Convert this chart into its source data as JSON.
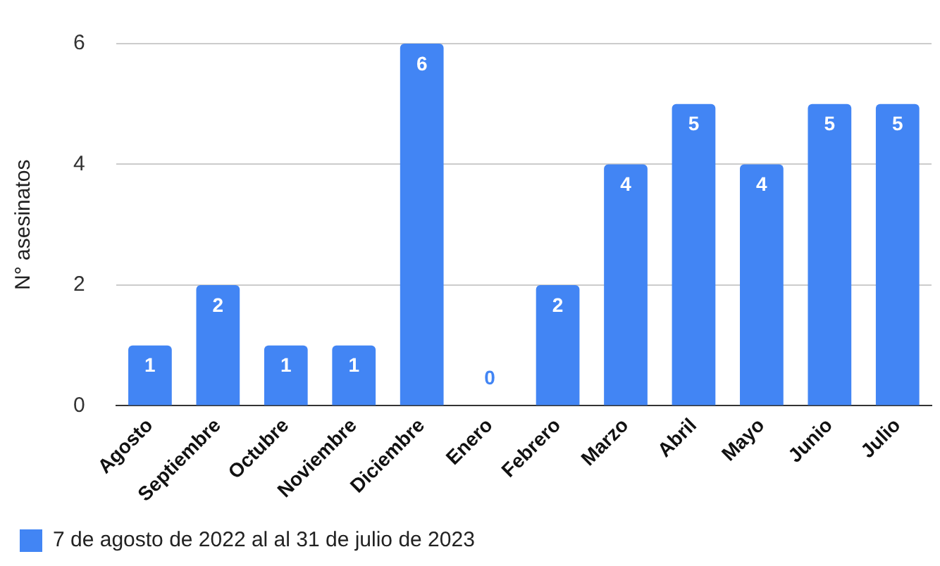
{
  "chart_data": {
    "type": "bar",
    "ylabel": "N° asesinatos",
    "categories": [
      "Agosto",
      "Septiembre",
      "Octubre",
      "Noviembre",
      "Diciembre",
      "Enero",
      "Febrero",
      "Marzo",
      "Abril",
      "Mayo",
      "Junio",
      "Julio"
    ],
    "series": [
      {
        "name": "7 de agosto de 2022 al al 31 de julio de 2023",
        "color": "#4285f4",
        "values": [
          1,
          2,
          1,
          1,
          6,
          0,
          2,
          4,
          5,
          4,
          5,
          5
        ]
      }
    ],
    "ylim": [
      0,
      6
    ],
    "yticks": [
      0,
      2,
      4,
      6
    ],
    "grid": "y",
    "legend": "bottom",
    "data_labels": true
  }
}
